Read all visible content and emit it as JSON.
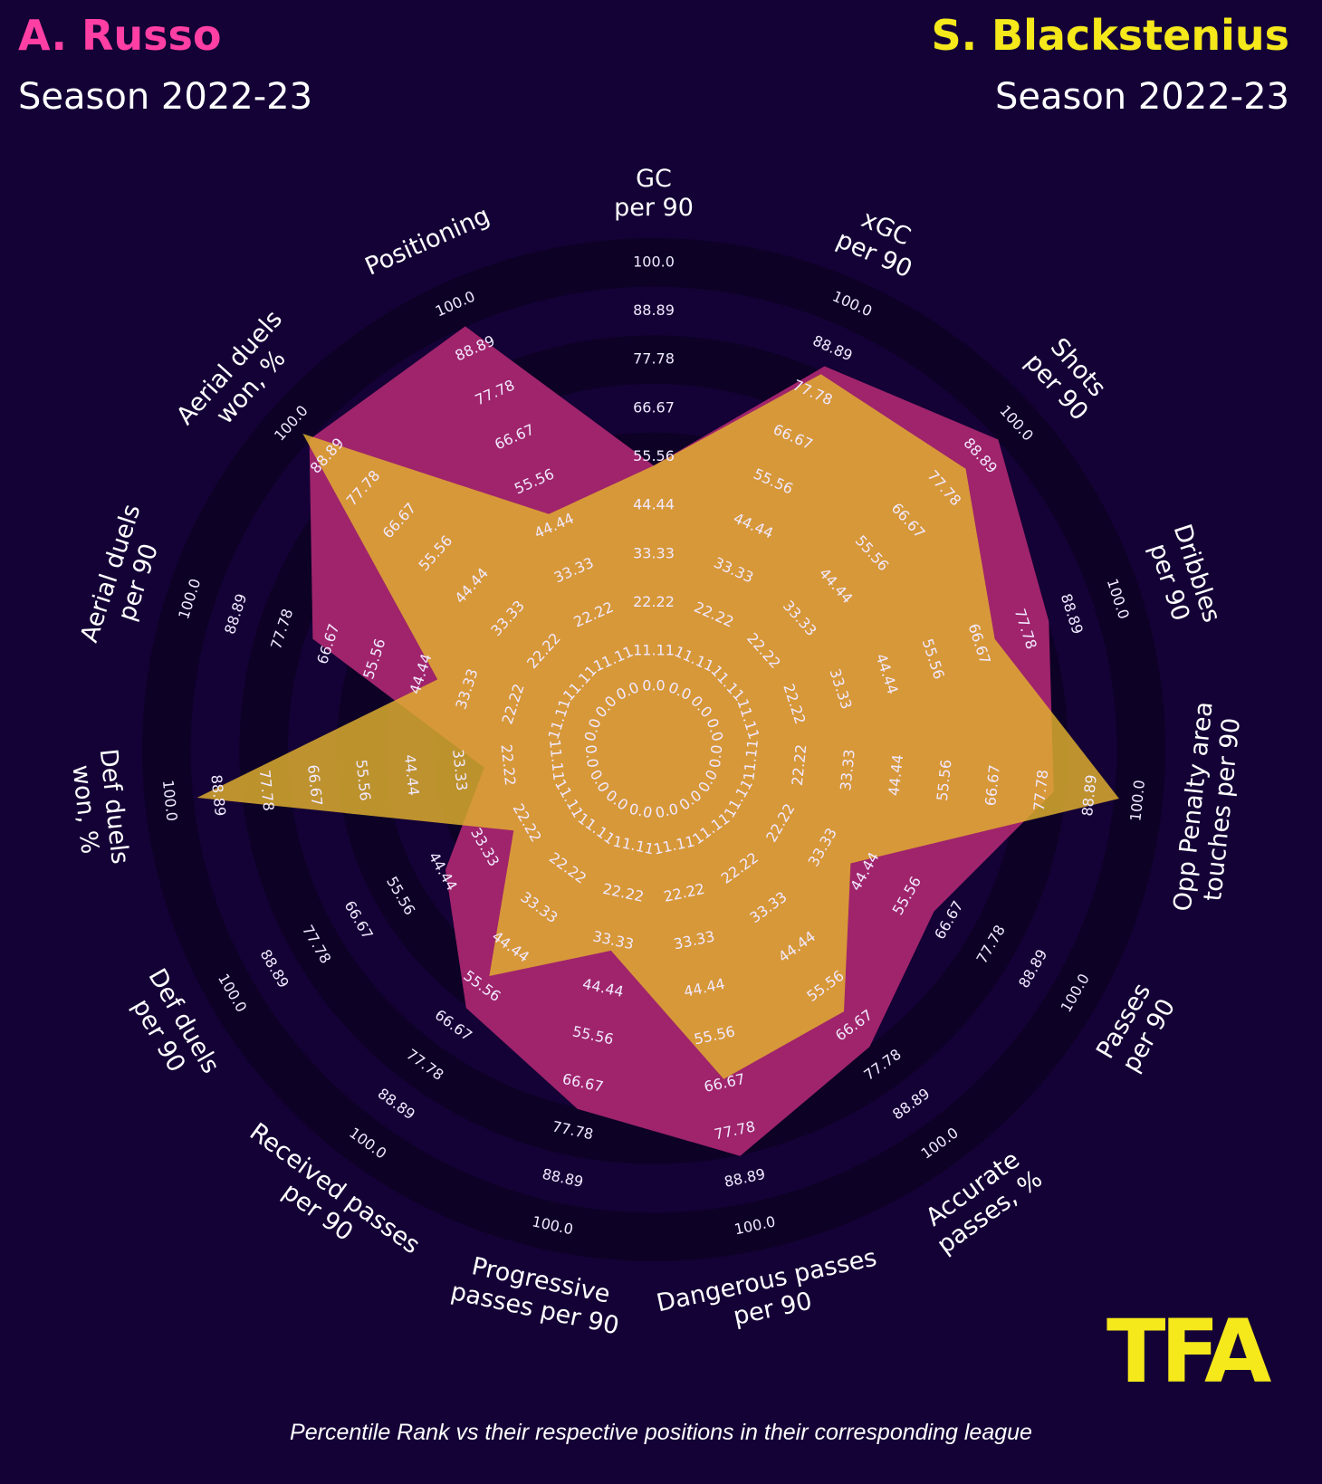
{
  "header": {
    "left_name": "A. Russo",
    "left_season": "Season 2022-23",
    "right_name": "S. Blackstenius",
    "right_season": "Season 2022-23"
  },
  "colors": {
    "background": "#140236",
    "left_player": "#ff3fa4",
    "right_player": "#f5e81b",
    "left_fill": "#a8266f",
    "right_fill": "#e3b22e"
  },
  "chart_data": {
    "type": "radar",
    "title": "",
    "scale": [
      0,
      100
    ],
    "rings": [
      "0.0",
      "11.11",
      "22.22",
      "33.33",
      "44.44",
      "55.56",
      "66.67",
      "77.78",
      "88.89",
      "100.0"
    ],
    "axes": [
      "GC\nper 90",
      "xGC\nper 90",
      "Shots\nper 90",
      "Dribbles\nper 90",
      "Opp Penalty area\ntouches per 90",
      "Passes\nper 90",
      "Accurate\npasses, %",
      "Dangerous passes\nper 90",
      "Progressive\npasses per 90",
      "Received passes\nper 90",
      "Def duels\nper 90",
      "Def duels\nwon, %",
      "Aerial duels\nper 90",
      "Aerial duels\nwon, %",
      "Positioning"
    ],
    "series": [
      {
        "name": "A. Russo",
        "values": [
          48,
          79,
          89,
          78,
          75,
          57,
          67,
          78,
          67,
          56,
          38,
          22,
          65,
          89,
          89
        ]
      },
      {
        "name": "S. Blackstenius",
        "values": [
          48,
          77,
          79,
          65,
          90,
          35,
          57,
          60,
          30,
          47,
          20,
          88,
          35,
          91,
          42
        ]
      }
    ]
  },
  "footnote": "Percentile Rank vs their respective positions in their corresponding league",
  "logo_text": "TFA"
}
